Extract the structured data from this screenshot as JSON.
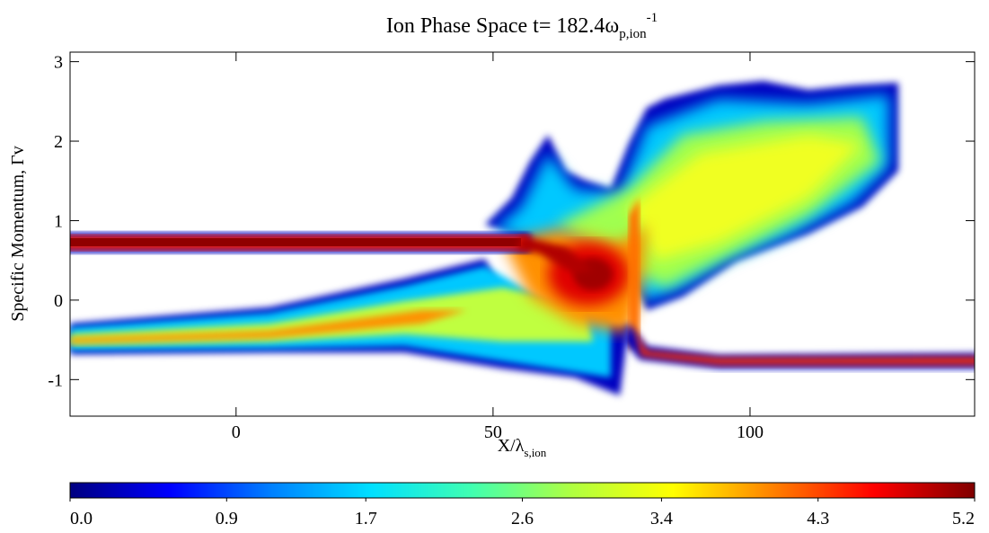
{
  "chart_data": {
    "type": "heatmap",
    "title": "Ion Phase Space t= 182.4ω",
    "title_sub": "p,ion",
    "title_sup": "-1",
    "xlabel": "X/λ",
    "xlabel_sub": "s,ion",
    "ylabel": "Specific Momentum, Γv",
    "xlim": [
      -32.3,
      143.7
    ],
    "xticks": [
      0,
      50,
      100
    ],
    "ylim": [
      -1.46,
      3.12
    ],
    "yticks": [
      -1,
      0,
      1,
      2,
      3
    ],
    "colorbar": {
      "lim": [
        0,
        5.2
      ],
      "ticks": [
        {
          "value": 0,
          "label": "0.0"
        },
        0.9,
        1.7,
        2.6,
        3.4,
        4.3,
        5.2
      ],
      "colormap": [
        "#000080",
        "#0000ff",
        "#0080ff",
        "#00e0ff",
        "#40ffb0",
        "#b0ff40",
        "#ffff00",
        "#ff8000",
        "#ff0000",
        "#800000"
      ]
    }
  }
}
